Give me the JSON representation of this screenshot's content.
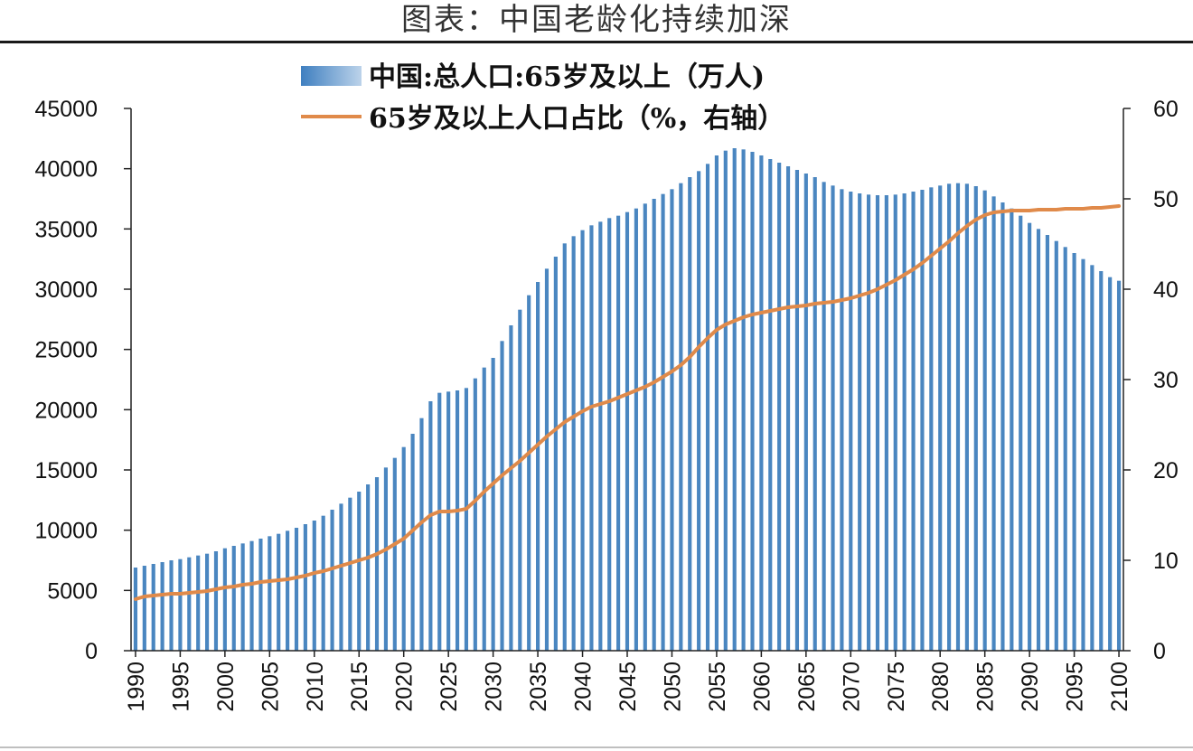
{
  "header": {
    "title": "图表：中国老龄化持续加深"
  },
  "chart_data": {
    "type": "bar",
    "x": [
      1990,
      1991,
      1992,
      1993,
      1994,
      1995,
      1996,
      1997,
      1998,
      1999,
      2000,
      2001,
      2002,
      2003,
      2004,
      2005,
      2006,
      2007,
      2008,
      2009,
      2010,
      2011,
      2012,
      2013,
      2014,
      2015,
      2016,
      2017,
      2018,
      2019,
      2020,
      2021,
      2022,
      2023,
      2024,
      2025,
      2026,
      2027,
      2028,
      2029,
      2030,
      2031,
      2032,
      2033,
      2034,
      2035,
      2036,
      2037,
      2038,
      2039,
      2040,
      2041,
      2042,
      2043,
      2044,
      2045,
      2046,
      2047,
      2048,
      2049,
      2050,
      2051,
      2052,
      2053,
      2054,
      2055,
      2056,
      2057,
      2058,
      2059,
      2060,
      2061,
      2062,
      2063,
      2064,
      2065,
      2066,
      2067,
      2068,
      2069,
      2070,
      2071,
      2072,
      2073,
      2074,
      2075,
      2076,
      2077,
      2078,
      2079,
      2080,
      2081,
      2082,
      2083,
      2084,
      2085,
      2086,
      2087,
      2088,
      2089,
      2090,
      2091,
      2092,
      2093,
      2094,
      2095,
      2096,
      2097,
      2098,
      2099,
      2100
    ],
    "series": [
      {
        "name": "中国:总人口:65岁及以上（万人)",
        "type": "bar",
        "axis": "left",
        "color": "#4a86c0",
        "values": [
          6900,
          7050,
          7200,
          7350,
          7500,
          7600,
          7750,
          7900,
          8050,
          8250,
          8500,
          8700,
          8900,
          9100,
          9300,
          9500,
          9700,
          9950,
          10200,
          10500,
          10800,
          11200,
          11700,
          12200,
          12700,
          13200,
          13800,
          14400,
          15200,
          16000,
          16900,
          18000,
          19300,
          20700,
          21400,
          21500,
          21600,
          21800,
          22600,
          23500,
          24300,
          25700,
          27000,
          28300,
          29500,
          30600,
          31700,
          32700,
          33800,
          34400,
          34900,
          35300,
          35600,
          35900,
          36100,
          36400,
          36700,
          37100,
          37500,
          37900,
          38300,
          38800,
          39300,
          39800,
          40400,
          41100,
          41500,
          41700,
          41600,
          41400,
          41100,
          40800,
          40500,
          40200,
          39900,
          39600,
          39300,
          38900,
          38600,
          38300,
          38100,
          37950,
          37850,
          37800,
          37800,
          37850,
          37950,
          38100,
          38250,
          38450,
          38600,
          38750,
          38800,
          38750,
          38550,
          38200,
          37700,
          37200,
          36700,
          36100,
          35500,
          35000,
          34500,
          34000,
          33500,
          33000,
          32500,
          32000,
          31500,
          31000,
          30700
        ]
      },
      {
        "name": "65岁及以上人口占比（%，右轴）",
        "type": "line",
        "axis": "right",
        "color": "#e08a4a",
        "values": [
          5.7,
          6.0,
          6.1,
          6.2,
          6.3,
          6.3,
          6.4,
          6.5,
          6.6,
          6.8,
          7.0,
          7.1,
          7.3,
          7.4,
          7.6,
          7.7,
          7.8,
          7.9,
          8.1,
          8.3,
          8.6,
          8.8,
          9.1,
          9.4,
          9.7,
          10.0,
          10.3,
          10.7,
          11.2,
          11.8,
          12.4,
          13.3,
          14.2,
          15.0,
          15.4,
          15.4,
          15.5,
          15.7,
          16.6,
          17.6,
          18.5,
          19.4,
          20.2,
          21.0,
          21.9,
          22.8,
          23.7,
          24.5,
          25.3,
          25.9,
          26.5,
          27.0,
          27.3,
          27.6,
          28.0,
          28.4,
          28.8,
          29.2,
          29.7,
          30.3,
          30.9,
          31.6,
          32.5,
          33.6,
          34.6,
          35.5,
          36.1,
          36.5,
          36.9,
          37.2,
          37.4,
          37.6,
          37.8,
          38.0,
          38.1,
          38.2,
          38.4,
          38.5,
          38.6,
          38.8,
          39.0,
          39.3,
          39.6,
          40.0,
          40.5,
          41.0,
          41.6,
          42.2,
          42.9,
          43.7,
          44.5,
          45.3,
          46.2,
          47.0,
          47.7,
          48.2,
          48.5,
          48.6,
          48.7,
          48.7,
          48.7,
          48.8,
          48.8,
          48.8,
          48.9,
          48.9,
          48.9,
          49.0,
          49.0,
          49.1,
          49.2
        ]
      }
    ],
    "y_left": {
      "ylim": [
        0,
        45000
      ],
      "ticks": [
        0,
        5000,
        10000,
        15000,
        20000,
        25000,
        30000,
        35000,
        40000,
        45000
      ]
    },
    "y_right": {
      "ylim": [
        0,
        60
      ],
      "ticks": [
        0,
        10,
        20,
        30,
        40,
        50,
        60
      ]
    },
    "x_ticks": [
      1990,
      1995,
      2000,
      2005,
      2010,
      2015,
      2020,
      2025,
      2030,
      2035,
      2040,
      2045,
      2050,
      2055,
      2060,
      2065,
      2070,
      2075,
      2080,
      2085,
      2090,
      2095,
      2100
    ],
    "grid": false,
    "legend_position": "top"
  }
}
